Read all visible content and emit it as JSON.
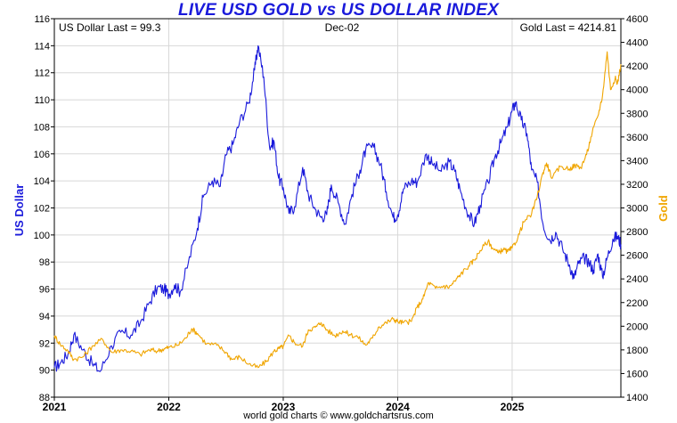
{
  "page": {
    "title": "LIVE USD GOLD vs US DOLLAR INDEX",
    "credit": "world gold charts © www.goldchartsrus.com"
  },
  "chart_data": {
    "type": "line",
    "title": "LIVE USD GOLD vs US DOLLAR INDEX",
    "info": {
      "left": "US Dollar Last = 99.3",
      "center": "Dec-02",
      "right": "Gold Last = 4214.81"
    },
    "y_left": {
      "label": "US Dollar",
      "range": [
        88,
        116
      ],
      "ticks": [
        "88",
        "90",
        "92",
        "94",
        "96",
        "98",
        "100",
        "102",
        "104",
        "106",
        "108",
        "110",
        "112",
        "114",
        "116"
      ],
      "color": "#1a1adb"
    },
    "y_right": {
      "label": "Gold",
      "range": [
        1400,
        4600
      ],
      "ticks": [
        "1400",
        "1600",
        "1800",
        "2000",
        "2200",
        "2400",
        "2600",
        "2800",
        "3000",
        "3200",
        "3400",
        "3600",
        "3800",
        "4000",
        "4200",
        "4400",
        "4600"
      ],
      "color": "#f0a500"
    },
    "x": {
      "range": [
        2021.0,
        2025.95
      ],
      "ticks": [
        {
          "v": 2021,
          "label": "2021"
        },
        {
          "v": 2022,
          "label": "2022"
        },
        {
          "v": 2023,
          "label": "2023"
        },
        {
          "v": 2024,
          "label": "2024"
        },
        {
          "v": 2025,
          "label": "2025"
        }
      ]
    },
    "grid": "horizontal and vertical",
    "series": [
      {
        "name": "US Dollar",
        "axis": "left",
        "color": "#1a1adb",
        "points": [
          [
            2021.0,
            90.2
          ],
          [
            2021.05,
            90.5
          ],
          [
            2021.12,
            91.2
          ],
          [
            2021.17,
            92.6
          ],
          [
            2021.25,
            91.5
          ],
          [
            2021.33,
            90.5
          ],
          [
            2021.4,
            89.9
          ],
          [
            2021.5,
            91.8
          ],
          [
            2021.58,
            92.8
          ],
          [
            2021.67,
            92.6
          ],
          [
            2021.75,
            93.5
          ],
          [
            2021.83,
            95.0
          ],
          [
            2021.9,
            96.1
          ],
          [
            2021.96,
            96.0
          ],
          [
            2022.0,
            95.6
          ],
          [
            2022.05,
            96.3
          ],
          [
            2022.1,
            95.8
          ],
          [
            2022.17,
            97.9
          ],
          [
            2022.25,
            100.5
          ],
          [
            2022.3,
            102.8
          ],
          [
            2022.38,
            104.0
          ],
          [
            2022.45,
            103.6
          ],
          [
            2022.5,
            105.9
          ],
          [
            2022.56,
            106.7
          ],
          [
            2022.62,
            108.4
          ],
          [
            2022.7,
            109.8
          ],
          [
            2022.75,
            112.2
          ],
          [
            2022.78,
            114.0
          ],
          [
            2022.83,
            111.7
          ],
          [
            2022.88,
            106.5
          ],
          [
            2022.92,
            106.9
          ],
          [
            2022.96,
            104.2
          ],
          [
            2023.0,
            103.5
          ],
          [
            2023.05,
            101.6
          ],
          [
            2023.1,
            102.1
          ],
          [
            2023.17,
            105.0
          ],
          [
            2023.22,
            103.0
          ],
          [
            2023.28,
            101.9
          ],
          [
            2023.33,
            101.3
          ],
          [
            2023.38,
            101.5
          ],
          [
            2023.42,
            103.7
          ],
          [
            2023.48,
            102.4
          ],
          [
            2023.54,
            100.8
          ],
          [
            2023.6,
            103.0
          ],
          [
            2023.67,
            104.8
          ],
          [
            2023.72,
            106.3
          ],
          [
            2023.79,
            106.5
          ],
          [
            2023.85,
            105.2
          ],
          [
            2023.9,
            103.2
          ],
          [
            2023.96,
            101.3
          ],
          [
            2024.0,
            101.5
          ],
          [
            2024.05,
            103.4
          ],
          [
            2024.12,
            104.0
          ],
          [
            2024.17,
            103.9
          ],
          [
            2024.25,
            106.0
          ],
          [
            2024.3,
            105.3
          ],
          [
            2024.38,
            104.7
          ],
          [
            2024.45,
            105.4
          ],
          [
            2024.5,
            104.7
          ],
          [
            2024.55,
            103.2
          ],
          [
            2024.62,
            101.5
          ],
          [
            2024.67,
            100.8
          ],
          [
            2024.72,
            102.2
          ],
          [
            2024.79,
            103.9
          ],
          [
            2024.85,
            105.8
          ],
          [
            2024.9,
            106.8
          ],
          [
            2024.96,
            108.0
          ],
          [
            2025.0,
            109.2
          ],
          [
            2025.03,
            109.8
          ],
          [
            2025.08,
            108.5
          ],
          [
            2025.13,
            107.5
          ],
          [
            2025.17,
            104.8
          ],
          [
            2025.22,
            103.9
          ],
          [
            2025.27,
            100.8
          ],
          [
            2025.33,
            99.6
          ],
          [
            2025.38,
            100.2
          ],
          [
            2025.44,
            99.0
          ],
          [
            2025.5,
            97.8
          ],
          [
            2025.54,
            96.8
          ],
          [
            2025.58,
            97.9
          ],
          [
            2025.63,
            98.3
          ],
          [
            2025.67,
            98.0
          ],
          [
            2025.71,
            97.4
          ],
          [
            2025.75,
            98.6
          ],
          [
            2025.79,
            96.9
          ],
          [
            2025.83,
            98.3
          ],
          [
            2025.88,
            99.7
          ],
          [
            2025.92,
            99.9
          ],
          [
            2025.95,
            99.3
          ]
        ]
      },
      {
        "name": "Gold",
        "axis": "right",
        "color": "#f0a500",
        "points": [
          [
            2021.0,
            1920
          ],
          [
            2021.05,
            1850
          ],
          [
            2021.12,
            1790
          ],
          [
            2021.17,
            1720
          ],
          [
            2021.25,
            1740
          ],
          [
            2021.33,
            1830
          ],
          [
            2021.42,
            1890
          ],
          [
            2021.5,
            1780
          ],
          [
            2021.58,
            1800
          ],
          [
            2021.67,
            1790
          ],
          [
            2021.75,
            1760
          ],
          [
            2021.83,
            1800
          ],
          [
            2021.9,
            1790
          ],
          [
            2021.96,
            1810
          ],
          [
            2022.0,
            1820
          ],
          [
            2022.08,
            1840
          ],
          [
            2022.15,
            1900
          ],
          [
            2022.2,
            1980
          ],
          [
            2022.25,
            1940
          ],
          [
            2022.33,
            1850
          ],
          [
            2022.42,
            1840
          ],
          [
            2022.5,
            1780
          ],
          [
            2022.55,
            1720
          ],
          [
            2022.62,
            1740
          ],
          [
            2022.7,
            1680
          ],
          [
            2022.78,
            1650
          ],
          [
            2022.85,
            1700
          ],
          [
            2022.92,
            1790
          ],
          [
            2022.96,
            1810
          ],
          [
            2023.0,
            1830
          ],
          [
            2023.05,
            1920
          ],
          [
            2023.1,
            1860
          ],
          [
            2023.17,
            1830
          ],
          [
            2023.22,
            1970
          ],
          [
            2023.28,
            1990
          ],
          [
            2023.33,
            2030
          ],
          [
            2023.38,
            1970
          ],
          [
            2023.45,
            1920
          ],
          [
            2023.52,
            1960
          ],
          [
            2023.58,
            1930
          ],
          [
            2023.65,
            1910
          ],
          [
            2023.72,
            1840
          ],
          [
            2023.78,
            1900
          ],
          [
            2023.83,
            1990
          ],
          [
            2023.9,
            2030
          ],
          [
            2023.96,
            2060
          ],
          [
            2024.0,
            2040
          ],
          [
            2024.05,
            2030
          ],
          [
            2024.12,
            2040
          ],
          [
            2024.17,
            2160
          ],
          [
            2024.22,
            2230
          ],
          [
            2024.27,
            2370
          ],
          [
            2024.33,
            2320
          ],
          [
            2024.4,
            2340
          ],
          [
            2024.45,
            2330
          ],
          [
            2024.5,
            2380
          ],
          [
            2024.55,
            2440
          ],
          [
            2024.62,
            2510
          ],
          [
            2024.67,
            2560
          ],
          [
            2024.72,
            2640
          ],
          [
            2024.79,
            2720
          ],
          [
            2024.83,
            2660
          ],
          [
            2024.88,
            2620
          ],
          [
            2024.92,
            2650
          ],
          [
            2024.96,
            2630
          ],
          [
            2025.0,
            2660
          ],
          [
            2025.05,
            2750
          ],
          [
            2025.1,
            2880
          ],
          [
            2025.17,
            2950
          ],
          [
            2025.22,
            3100
          ],
          [
            2025.27,
            3300
          ],
          [
            2025.3,
            3380
          ],
          [
            2025.35,
            3250
          ],
          [
            2025.42,
            3350
          ],
          [
            2025.5,
            3330
          ],
          [
            2025.55,
            3360
          ],
          [
            2025.6,
            3340
          ],
          [
            2025.65,
            3450
          ],
          [
            2025.7,
            3640
          ],
          [
            2025.75,
            3780
          ],
          [
            2025.79,
            3950
          ],
          [
            2025.83,
            4320
          ],
          [
            2025.86,
            4000
          ],
          [
            2025.9,
            4100
          ],
          [
            2025.92,
            4050
          ],
          [
            2025.95,
            4215
          ]
        ]
      }
    ]
  }
}
